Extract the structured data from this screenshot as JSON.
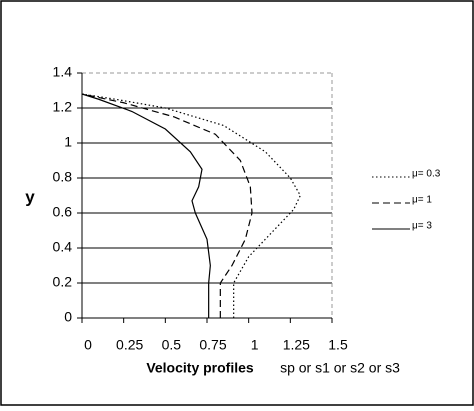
{
  "chart_data": {
    "type": "line",
    "xlabel": "Velocity profiles",
    "xlabel2": "sp or s1 or s2 or s3",
    "ylabel": "y",
    "xlim": [
      0,
      1.5
    ],
    "ylim": [
      0,
      1.4
    ],
    "xticks": [
      0,
      0.25,
      0.5,
      0.75,
      1,
      1.25,
      1.5
    ],
    "yticks": [
      0,
      0.2,
      0.4,
      0.6,
      0.8,
      1,
      1.2,
      1.4
    ],
    "grid": true,
    "series": [
      {
        "name": "μ= 0.3",
        "color": "#000000",
        "dash": "dotted",
        "x": [
          0.91,
          0.91,
          1.0,
          1.15,
          1.27,
          1.31,
          1.25,
          1.1,
          0.85,
          0.5,
          0.2,
          0
        ],
        "values": [
          0,
          0.2,
          0.35,
          0.5,
          0.62,
          0.7,
          0.8,
          0.95,
          1.1,
          1.2,
          1.25,
          1.28
        ]
      },
      {
        "name": "μ= 1",
        "color": "#000000",
        "dash": "dashed",
        "x": [
          0.83,
          0.83,
          0.9,
          0.98,
          1.02,
          1.01,
          0.95,
          0.8,
          0.55,
          0.25,
          0
        ],
        "values": [
          0,
          0.2,
          0.3,
          0.45,
          0.6,
          0.75,
          0.9,
          1.05,
          1.15,
          1.23,
          1.28
        ]
      },
      {
        "name": "μ= 3",
        "color": "#000000",
        "dash": "solid",
        "x": [
          0.76,
          0.76,
          0.77,
          0.75,
          0.68,
          0.66,
          0.7,
          0.72,
          0.65,
          0.5,
          0.3,
          0.1,
          0
        ],
        "values": [
          0,
          0.2,
          0.3,
          0.45,
          0.6,
          0.67,
          0.75,
          0.85,
          0.95,
          1.08,
          1.18,
          1.25,
          1.28
        ]
      }
    ]
  }
}
